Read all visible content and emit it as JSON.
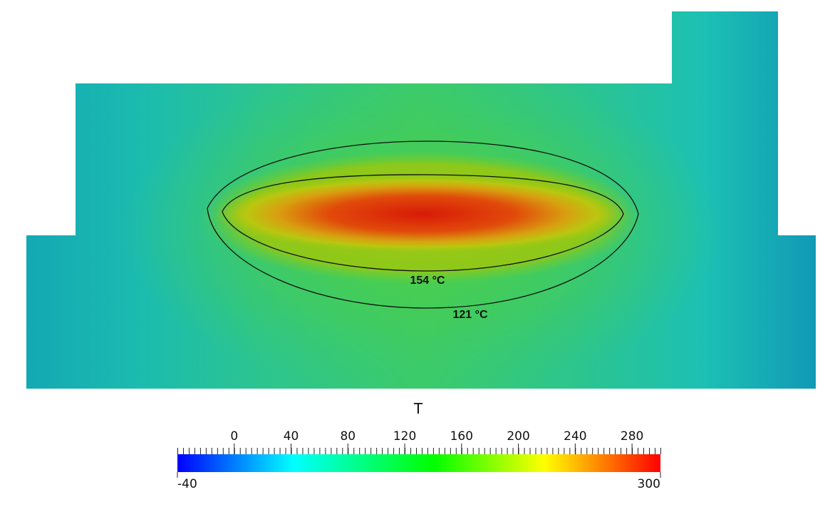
{
  "field": {
    "contours": [
      {
        "value": 154,
        "label": "154 °C"
      },
      {
        "value": 121,
        "label": "121 °C"
      }
    ]
  },
  "colorbar": {
    "title": "T",
    "range": [
      -40,
      300
    ],
    "ticks": [
      0,
      40,
      80,
      120,
      160,
      200,
      240,
      280
    ]
  }
}
